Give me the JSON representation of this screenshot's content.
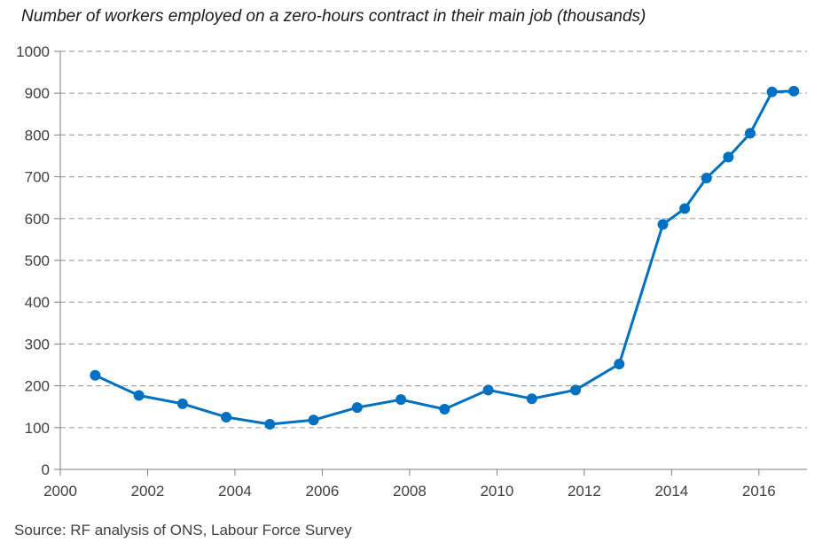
{
  "chart_data": {
    "type": "line",
    "title": "Number of workers employed on a zero-hours contract in their main job (thousands)",
    "source": "Source: RF analysis of ONS, Labour Force Survey",
    "xlabel": "",
    "ylabel": "",
    "xlim": [
      2000,
      2017.1
    ],
    "ylim": [
      0,
      1000
    ],
    "x_ticks": [
      2000,
      2002,
      2004,
      2006,
      2008,
      2010,
      2012,
      2014,
      2016
    ],
    "y_ticks": [
      0,
      100,
      200,
      300,
      400,
      500,
      600,
      700,
      800,
      900,
      1000
    ],
    "grid": "horizontal dashed",
    "legend": "none",
    "series": [
      {
        "color": "#0070c0",
        "points": [
          {
            "x": 2000.8,
            "y": 225
          },
          {
            "x": 2001.8,
            "y": 177
          },
          {
            "x": 2002.8,
            "y": 157
          },
          {
            "x": 2003.8,
            "y": 125
          },
          {
            "x": 2004.8,
            "y": 108
          },
          {
            "x": 2005.8,
            "y": 118
          },
          {
            "x": 2006.8,
            "y": 148
          },
          {
            "x": 2007.8,
            "y": 167
          },
          {
            "x": 2008.8,
            "y": 144
          },
          {
            "x": 2009.8,
            "y": 190
          },
          {
            "x": 2010.8,
            "y": 169
          },
          {
            "x": 2011.8,
            "y": 190
          },
          {
            "x": 2012.8,
            "y": 252
          },
          {
            "x": 2013.8,
            "y": 586
          },
          {
            "x": 2014.3,
            "y": 624
          },
          {
            "x": 2014.8,
            "y": 697
          },
          {
            "x": 2015.3,
            "y": 747
          },
          {
            "x": 2015.8,
            "y": 804
          },
          {
            "x": 2016.3,
            "y": 903
          },
          {
            "x": 2016.8,
            "y": 905
          }
        ]
      }
    ]
  }
}
